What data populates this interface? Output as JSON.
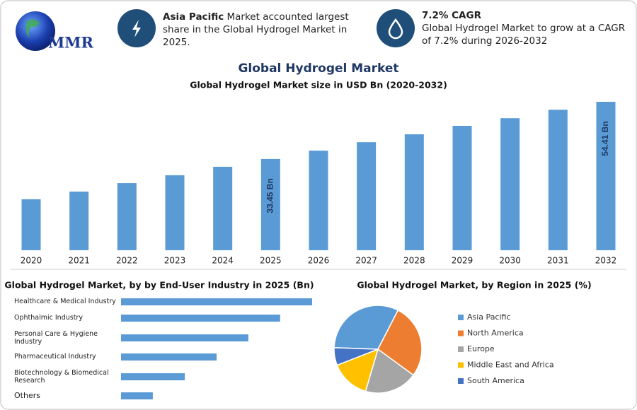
{
  "header": {
    "logo": "MMR",
    "highlights": [
      {
        "bold": "Asia Pacific",
        "text": "Market accounted largest share in the Global Hydrogel Market in 2025."
      },
      {
        "title": "7.2% CAGR",
        "text": "Global Hydrogel Market to grow at a CAGR of 7.2% during 2026-2032"
      }
    ]
  },
  "title": "Global Hydrogel Market",
  "chart_data": [
    {
      "type": "bar",
      "title": "Global Hydrogel Market size in USD Bn (2020-2032)",
      "categories": [
        "2020",
        "2021",
        "2022",
        "2023",
        "2024",
        "2025",
        "2026",
        "2027",
        "2028",
        "2029",
        "2030",
        "2031",
        "2032"
      ],
      "values": [
        18.7,
        21.5,
        24.6,
        27.5,
        30.6,
        33.45,
        36.5,
        39.6,
        42.5,
        45.6,
        48.4,
        51.5,
        54.41
      ],
      "value_labels": [
        null,
        null,
        null,
        null,
        null,
        "33.45 Bn",
        null,
        null,
        null,
        null,
        null,
        null,
        "54.41 Bn"
      ],
      "color": "#5b9bd5"
    },
    {
      "type": "barh",
      "title": "Global Hydrogel Market, by by End-User Industry in 2025 (Bn)",
      "categories": [
        "Healthcare & Medical Industry",
        "Ophthalmic Industry",
        "Personal Care & Hygiene Industry",
        "Pharmaceutical Industry",
        "Biotechnology & Biomedical Research",
        "Others"
      ],
      "values": [
        9.56,
        7.96,
        6.37,
        4.78,
        3.19,
        1.59
      ],
      "color": "#5b9bd5"
    },
    {
      "type": "pie",
      "title": "Global Hydrogel Market, by Region in 2025 (%)",
      "categories": [
        "Asia Pacific",
        "North America",
        "Europe",
        "Middle East and Africa",
        "South America"
      ],
      "values": [
        32,
        27.5,
        19.5,
        14.5,
        6.5
      ],
      "colors": [
        "#5b9bd5",
        "#ed7d31",
        "#a5a5a5",
        "#ffc000",
        "#4472c4"
      ]
    }
  ]
}
